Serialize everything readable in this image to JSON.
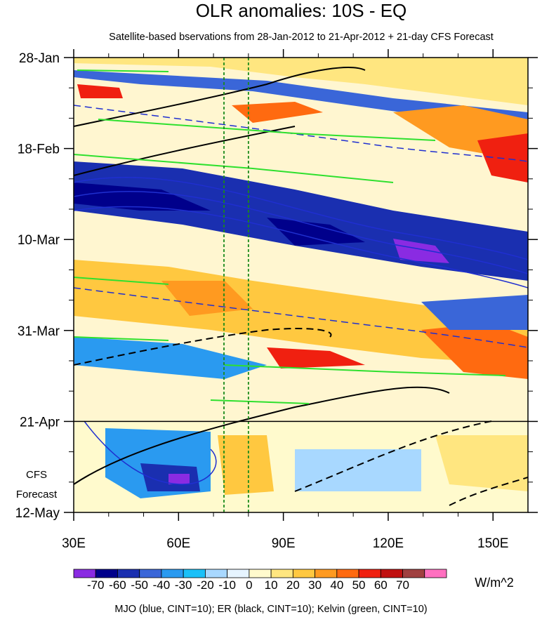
{
  "title": "OLR anomalies: 10S - EQ",
  "subtitle": "Satellite-based bservations from 28-Jan-2012 to 21-Apr-2012 + 21-day CFS Forecast",
  "forecast_label_line1": "CFS",
  "forecast_label_line2": "Forecast",
  "units": "W/m^2",
  "footer": "MJO (blue, CINT=10); ER (black, CINT=10); Kelvin (green, CINT=10)",
  "colors": {
    "mjo": "#1f2fd0",
    "er": "#000000",
    "kelvin": "#2ee02e",
    "reference_lines": "#1a8a1a"
  },
  "chart_data": {
    "type": "heatmap",
    "x_axis": {
      "ticks": [
        "30E",
        "60E",
        "90E",
        "120E",
        "150E"
      ],
      "range": [
        30,
        160
      ]
    },
    "y_axis": {
      "ticks": [
        "28-Jan",
        "18-Feb",
        "10-Mar",
        "31-Mar",
        "21-Apr",
        "12-May"
      ],
      "range": [
        "28-Jan",
        "12-May"
      ],
      "reversed": true
    },
    "forecast_start": "21-Apr",
    "reference_longitudes": [
      73,
      80
    ],
    "colorbar": {
      "labels": [
        "-70",
        "-60",
        "-50",
        "-40",
        "-30",
        "-20",
        "-10",
        "0",
        "10",
        "20",
        "30",
        "40",
        "50",
        "60",
        "70"
      ],
      "colors": [
        "#8a2be2",
        "#00008b",
        "#1a2fb0",
        "#3a66d8",
        "#2a9af0",
        "#1ac0f8",
        "#a8d8ff",
        "#e6f4ff",
        "#fffacd",
        "#ffe680",
        "#ffc840",
        "#ff9a20",
        "#ff6a10",
        "#f02010",
        "#c01010",
        "#a04040",
        "#ff70c0"
      ]
    }
  }
}
